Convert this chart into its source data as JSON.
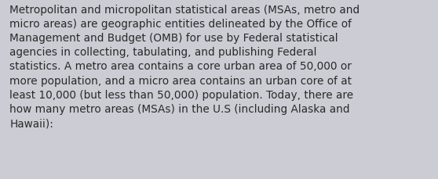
{
  "text": "Metropolitan and micropolitan statistical areas (MSAs, metro and micro areas) are geographic entities delineated by the Office of Management and Budget (OMB) for use by Federal statistical agencies in collecting, tabulating, and publishing Federal statistics. A metro area contains a core urban area of 50,000 or more population, and a micro area contains an urban core of at least 10,000 (but less than 50,000) population. Today, there are how many metro areas (MSAs) in the U.S (including Alaska and Hawaii):",
  "lines": [
    "Metropolitan and micropolitan statistical areas (MSAs, metro and",
    "micro areas) are geographic entities delineated by the Office of",
    "Management and Budget (OMB) for use by Federal statistical",
    "agencies in collecting, tabulating, and publishing Federal",
    "statistics. A metro area contains a core urban area of 50,000 or",
    "more population, and a micro area contains an urban core of at",
    "least 10,000 (but less than 50,000) population. Today, there are",
    "how many metro areas (MSAs) in the U.S (including Alaska and",
    "Hawaii):"
  ],
  "background_color": "#ccccd4",
  "text_color": "#2a2a2a",
  "font_size": 9.8,
  "fig_width": 5.58,
  "fig_height": 2.3
}
